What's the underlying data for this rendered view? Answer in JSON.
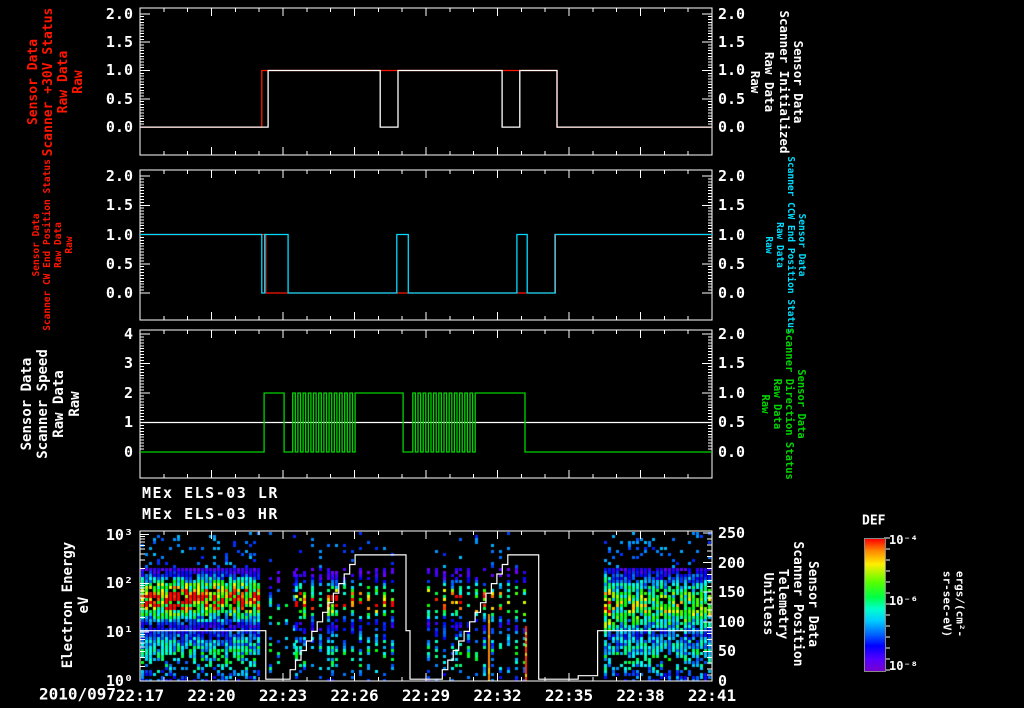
{
  "colors": {
    "background": "#000000",
    "frame": "#ffffff",
    "red": "#ff1500",
    "white": "#ffffff",
    "cyan": "#00dcff",
    "green": "#00d400"
  },
  "x_axis": {
    "date_label": "2010/097",
    "ticks": [
      "22:17",
      "22:20",
      "22:23",
      "22:26",
      "22:29",
      "22:32",
      "22:35",
      "22:38",
      "22:41"
    ]
  },
  "chart_data": [
    {
      "id": "scanner-30v-and-initialized",
      "type": "line",
      "ylim": [
        0,
        2
      ],
      "y_ticks": [
        "2.0",
        "1.5",
        "1.0",
        "0.5",
        "0.0"
      ],
      "left_label": "Sensor Data\nScanner +30V Status\nRaw Data\nRaw",
      "right_label": "Sensor Data\nScanner Initialized\nRaw Data\nRaw",
      "left_label_color": "red",
      "right_label_color": "white",
      "series": [
        {
          "name": "Scanner +30V Status Raw",
          "color": "red",
          "points": [
            [
              0,
              0
            ],
            [
              0.213,
              0
            ],
            [
              0.213,
              1
            ],
            [
              0.729,
              1
            ],
            [
              0.729,
              0
            ],
            [
              1,
              0
            ]
          ]
        },
        {
          "name": "Scanner Initialized Raw",
          "color": "white",
          "points": [
            [
              0,
              0
            ],
            [
              0.224,
              0
            ],
            [
              0.224,
              1
            ],
            [
              0.42,
              1
            ],
            [
              0.42,
              0
            ],
            [
              0.451,
              0
            ],
            [
              0.451,
              1
            ],
            [
              0.633,
              1
            ],
            [
              0.633,
              0
            ],
            [
              0.664,
              0
            ],
            [
              0.664,
              1
            ],
            [
              0.729,
              1
            ],
            [
              0.729,
              0
            ],
            [
              1,
              0
            ]
          ]
        }
      ]
    },
    {
      "id": "scanner-end-position-status",
      "type": "line",
      "ylim": [
        0,
        2
      ],
      "y_ticks": [
        "2.0",
        "1.5",
        "1.0",
        "0.5",
        "0.0"
      ],
      "left_label": "Sensor Data\nScanner CW End Position Status\nRaw Data\nRaw",
      "right_label": "Sensor Data\nScanner CCW End Position Status\nRaw Data\nRaw",
      "left_label_color": "red",
      "right_label_color": "cyan",
      "series": [
        {
          "name": "Scanner CW End Position Status Raw",
          "color": "red",
          "points": [
            [
              0,
              1
            ],
            [
              0.22,
              1
            ],
            [
              0.22,
              0
            ],
            [
              0.725,
              0
            ],
            [
              0.725,
              1
            ],
            [
              1,
              1
            ]
          ]
        },
        {
          "name": "Scanner CCW End Position Status Raw",
          "color": "cyan",
          "points": [
            [
              0,
              1
            ],
            [
              0.213,
              1
            ],
            [
              0.213,
              0
            ],
            [
              0.218,
              0
            ],
            [
              0.218,
              1
            ],
            [
              0.259,
              1
            ],
            [
              0.259,
              0
            ],
            [
              0.449,
              0
            ],
            [
              0.449,
              1
            ],
            [
              0.469,
              1
            ],
            [
              0.469,
              0
            ],
            [
              0.659,
              0
            ],
            [
              0.659,
              1
            ],
            [
              0.677,
              1
            ],
            [
              0.677,
              0
            ],
            [
              0.726,
              0
            ],
            [
              0.726,
              1
            ],
            [
              1,
              1
            ]
          ]
        }
      ]
    },
    {
      "id": "scanner-speed-and-direction",
      "type": "line",
      "ylim_left": [
        0,
        4
      ],
      "ylim_right": [
        0,
        2
      ],
      "y_ticks_left": [
        "4",
        "3",
        "2",
        "1",
        "0"
      ],
      "y_ticks_right": [
        "2.0",
        "1.5",
        "1.0",
        "0.5",
        "0.0"
      ],
      "left_label": "Sensor Data\nScanner Speed\nRaw Data\nRaw",
      "right_label": "Sensor Data\nScanner Direction Status\nRaw Data\nRaw",
      "left_label_color": "white",
      "right_label_color": "green",
      "series": [
        {
          "name": "Scanner Speed Raw",
          "color": "white",
          "axis": "left",
          "points": [
            [
              0,
              1
            ],
            [
              1,
              1
            ]
          ]
        },
        {
          "name": "Scanner Direction Status Raw",
          "color": "green",
          "axis": "right",
          "points": [
            [
              0,
              0
            ],
            [
              0.217,
              0
            ],
            [
              0.217,
              1
            ],
            [
              0.252,
              1
            ],
            [
              0.252,
              0
            ],
            [
              0.267,
              0
            ],
            {
              "burst": [
                0.267,
                0.376,
                12
              ]
            },
            [
              0.376,
              1
            ],
            [
              0.46,
              1
            ],
            [
              0.46,
              0
            ],
            [
              0.477,
              0
            ],
            {
              "burst": [
                0.477,
                0.586,
                12
              ]
            },
            [
              0.586,
              1
            ],
            [
              0.673,
              1
            ],
            [
              0.673,
              0
            ],
            [
              1,
              0
            ]
          ]
        }
      ]
    },
    {
      "id": "els-spectrogram-with-scanner-position",
      "type": "heatmap",
      "titles": [
        "MEx ELS-03 LR",
        "MEx ELS-03 HR"
      ],
      "left_label": "Electron Energy\neV",
      "left_ticks": [
        "10³",
        "10²",
        "10¹",
        "10⁰"
      ],
      "right_label": "Sensor Data\nScanner Position\nTelemetry\nUnitless",
      "right_ticks": [
        "250",
        "200",
        "150",
        "100",
        "50",
        "0"
      ],
      "ylim_right": [
        0,
        250
      ],
      "energy_range_log10": [
        0,
        3
      ],
      "overlay_series": {
        "name": "Scanner Position Telemetry",
        "color": "white",
        "points": [
          [
            0,
            85
          ],
          [
            0.22,
            85
          ],
          [
            0.22,
            3
          ],
          [
            0.253,
            3
          ],
          {
            "stair": [
              0.253,
              3,
              0.376,
              213,
              13
            ]
          },
          [
            0.376,
            213
          ],
          [
            0.465,
            213
          ],
          [
            0.465,
            85
          ],
          [
            0.472,
            85
          ],
          [
            0.472,
            3
          ],
          [
            0.519,
            3
          ],
          {
            "stair": [
              0.519,
              3,
              0.643,
              213,
              13
            ]
          },
          [
            0.643,
            213
          ],
          [
            0.697,
            213
          ],
          [
            0.697,
            3
          ],
          [
            0.766,
            3
          ],
          [
            0.766,
            9
          ],
          [
            0.8,
            9
          ],
          [
            0.8,
            85
          ],
          [
            1,
            85
          ]
        ]
      },
      "regions": [
        {
          "name": "dense-block-1",
          "from": 0.0,
          "to": 0.205,
          "style": "dense",
          "peak": 0.97,
          "peak_logE": 1.65,
          "spread": 0.38,
          "density": 0.92
        },
        {
          "name": "sparse-gap",
          "from": 0.225,
          "to": 0.268,
          "style": "striped",
          "peak": 0.45,
          "peak_logE": 1.3,
          "spread": 0.5,
          "density": 0.3
        },
        {
          "name": "striped-block-1",
          "from": 0.27,
          "to": 0.45,
          "style": "striped",
          "peak": 0.9,
          "peak_logE": 1.6,
          "spread": 0.32,
          "density": 0.6
        },
        {
          "name": "striped-block-2",
          "from": 0.5,
          "to": 0.67,
          "style": "striped",
          "peak": 0.88,
          "peak_logE": 1.6,
          "spread": 0.32,
          "density": 0.55
        },
        {
          "name": "dense-block-2",
          "from": 0.81,
          "to": 1.0,
          "style": "dense",
          "peak": 0.62,
          "peak_logE": 1.5,
          "spread": 0.55,
          "density": 0.88,
          "hot_edge": true
        }
      ],
      "streaks": [
        {
          "at": 0.608,
          "color": "#ff8800",
          "to_logE": 1.35
        },
        {
          "at": 0.672,
          "color": "#ff3300",
          "to_logE": 1.1
        }
      ],
      "colorbar": {
        "title": "DEF",
        "ticks": [
          "10⁻⁴",
          "10⁻⁶",
          "10⁻⁸"
        ],
        "units": "ergs/(cm²-sr-sec-eV)"
      }
    }
  ]
}
